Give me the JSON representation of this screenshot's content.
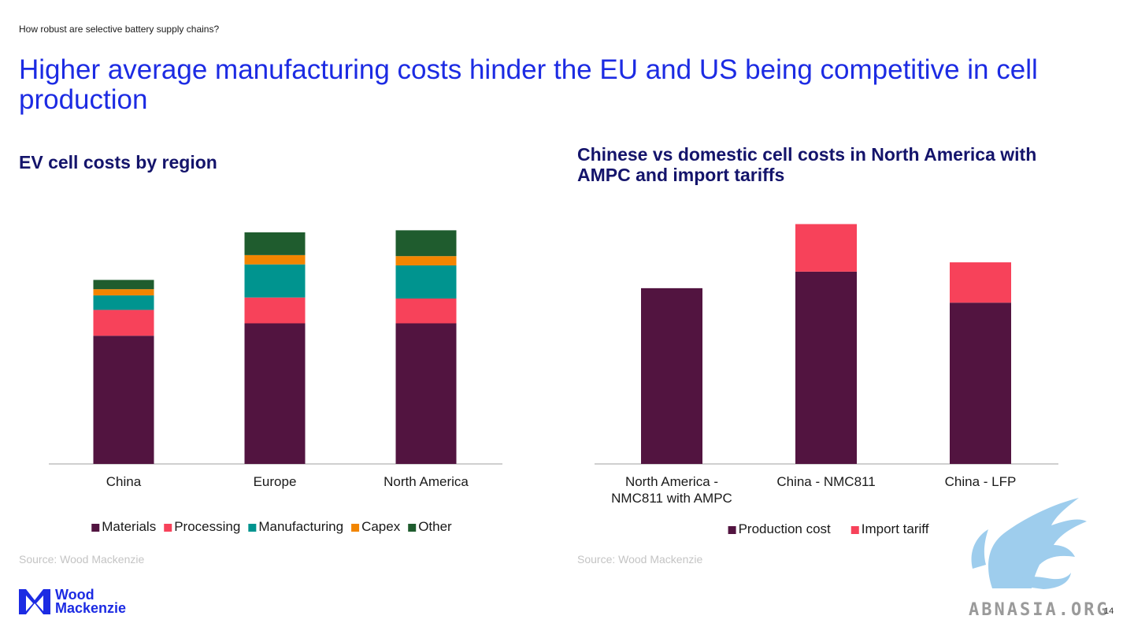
{
  "header": {
    "eyebrow": "How robust are selective battery supply chains?",
    "headline": "Higher average manufacturing costs hinder the EU and US being competitive in cell production"
  },
  "left_panel": {
    "title": "EV cell costs by region",
    "source": "Source: Wood Mackenzie"
  },
  "right_panel": {
    "title": "Chinese vs domestic cell costs in North America with AMPC and import tariffs",
    "source": "Source: Wood Mackenzie"
  },
  "footer": {
    "logo_line1": "Wood",
    "logo_line2": "Mackenzie",
    "watermark_text": "ABNASIA.ORG",
    "page_number": "14"
  },
  "chart_data": [
    {
      "type": "bar",
      "stacked": true,
      "title": "EV cell costs by region",
      "categories": [
        "China",
        "Europe",
        "North America"
      ],
      "series": [
        {
          "name": "Materials",
          "color": "#521440",
          "values": [
            62,
            68,
            68
          ]
        },
        {
          "name": "Processing",
          "color": "#f7425a",
          "values": [
            12.5,
            12.5,
            12
          ]
        },
        {
          "name": "Manufacturing",
          "color": "#00948f",
          "values": [
            7,
            16,
            16
          ]
        },
        {
          "name": "Capex",
          "color": "#f28500",
          "values": [
            3,
            4.5,
            4.5
          ]
        },
        {
          "name": "Other",
          "color": "#1f5c2e",
          "values": [
            4.5,
            11,
            12.5
          ]
        }
      ],
      "ylim": [
        0,
        120
      ],
      "xlabel": "",
      "ylabel": "",
      "grid": false,
      "legend": "bottom"
    },
    {
      "type": "bar",
      "stacked": true,
      "title": "Chinese vs domestic cell costs in North America with AMPC and import tariffs",
      "categories": [
        "North America - NMC811 with AMPC",
        "China - NMC811",
        "China - LFP"
      ],
      "category_lines": [
        [
          "North America -",
          "NMC811 with AMPC"
        ],
        [
          "China - NMC811"
        ],
        [
          "China - LFP"
        ]
      ],
      "series": [
        {
          "name": "Production cost",
          "color": "#521440",
          "values": [
            85,
            93,
            78
          ]
        },
        {
          "name": "Import tariff",
          "color": "#f7425a",
          "values": [
            0,
            23,
            19.5
          ]
        }
      ],
      "ylim": [
        0,
        120
      ],
      "xlabel": "",
      "ylabel": "",
      "grid": false,
      "legend": "bottom"
    }
  ]
}
